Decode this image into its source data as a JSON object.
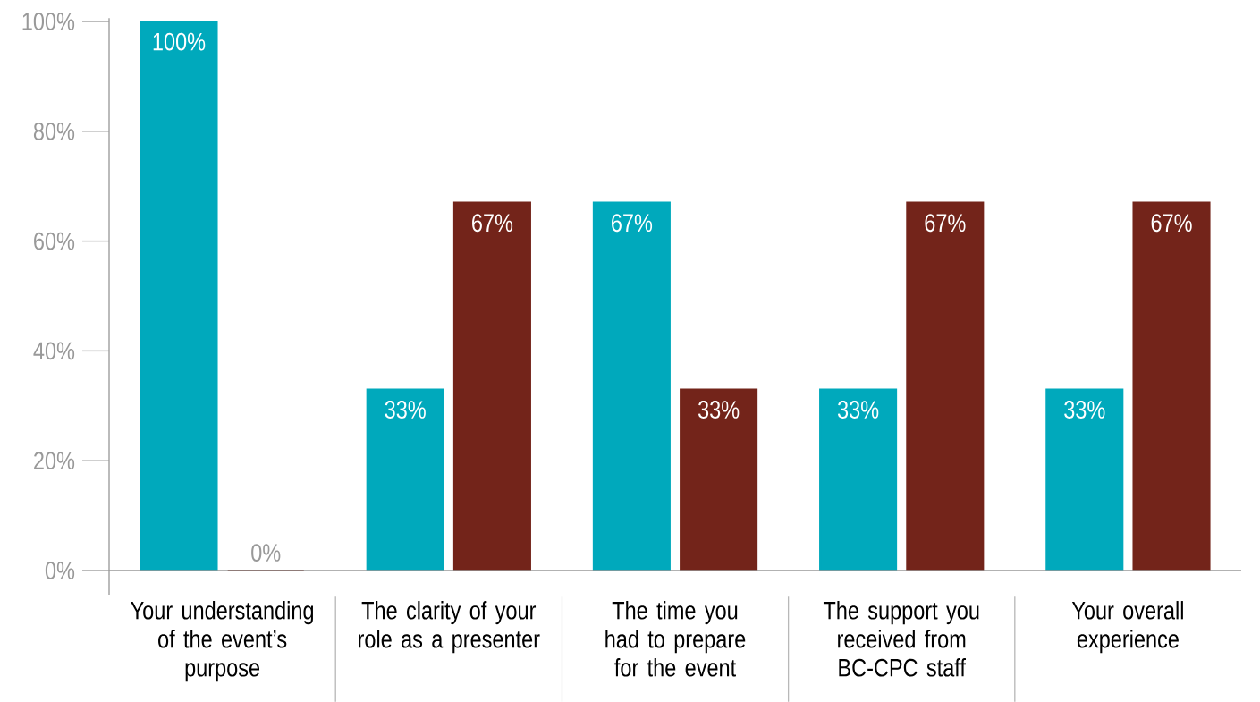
{
  "chart_data": {
    "type": "bar",
    "categories": [
      "Your understanding of the event’s purpose",
      "The clarity of your role as a presenter",
      "The time you had to prepare for the event",
      "The support you received from BC-CPC staff",
      "Your overall experience"
    ],
    "series": [
      {
        "color": "#00a9bc",
        "values": [
          100,
          33,
          67,
          33,
          33
        ],
        "value_labels": [
          "100%",
          "33%",
          "67%",
          "33%",
          "33%"
        ]
      },
      {
        "color": "#73241a",
        "values": [
          0,
          67,
          33,
          67,
          67
        ],
        "value_labels": [
          "0%",
          "67%",
          "33%",
          "67%",
          "67%"
        ]
      }
    ],
    "ylim": [
      0,
      100
    ],
    "yticks": [
      {
        "value": 0,
        "label": "0%"
      },
      {
        "value": 20,
        "label": "20%"
      },
      {
        "value": 40,
        "label": "40%"
      },
      {
        "value": 60,
        "label": "60%"
      },
      {
        "value": 80,
        "label": "80%"
      },
      {
        "value": 100,
        "label": "100%"
      }
    ],
    "grid": false
  }
}
